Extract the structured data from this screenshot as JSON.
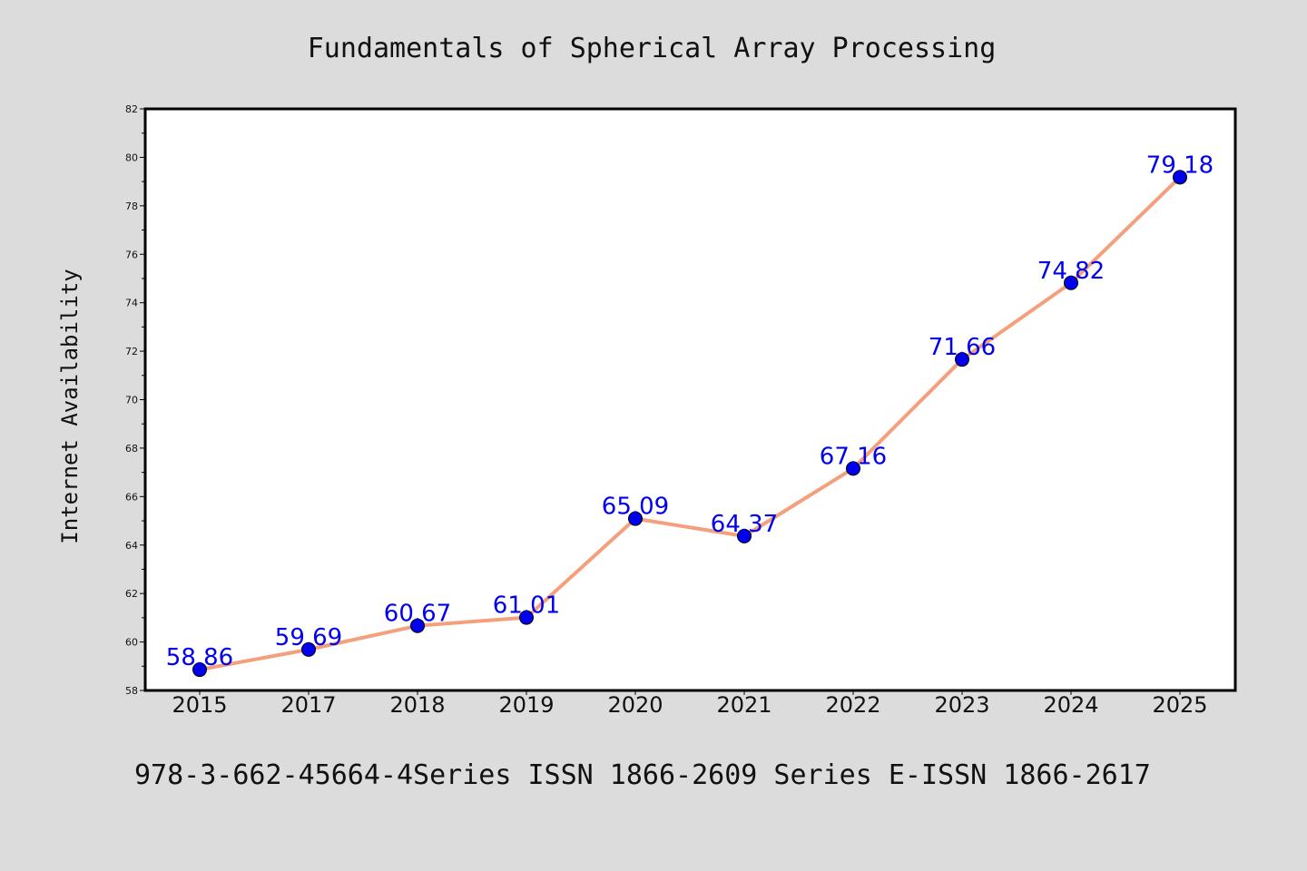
{
  "chart_data": {
    "type": "line",
    "title": "Fundamentals of Spherical Array Processing",
    "ylabel": "Internet Availability",
    "xlabel": "",
    "footer": "978-3-662-45664-4Series ISSN 1866-2609 Series E-ISSN 1866-2617",
    "categories": [
      "2015",
      "2017",
      "2018",
      "2019",
      "2020",
      "2021",
      "2022",
      "2023",
      "2024",
      "2025"
    ],
    "series": [
      {
        "values": [
          58.86,
          59.69,
          60.67,
          61.01,
          65.09,
          64.37,
          67.16,
          71.66,
          74.82,
          79.18
        ],
        "labels": [
          "58.86",
          "59.69",
          "60.67",
          "61.01",
          "65.09",
          "64.37",
          "67.16",
          "71.66",
          "74.82",
          "79.18"
        ],
        "line_color": "#f4a07c",
        "marker_color": "#0000ee",
        "label_color": "#0000ee"
      }
    ],
    "ylim": [
      58,
      82
    ],
    "yticks": [
      58,
      60,
      62,
      64,
      66,
      68,
      70,
      72,
      74,
      76,
      78,
      80,
      82
    ],
    "yticks_minor_step": 1,
    "grid": false,
    "legend": "none",
    "background": "#dcdcdc",
    "plot_background": "#ffffff"
  }
}
